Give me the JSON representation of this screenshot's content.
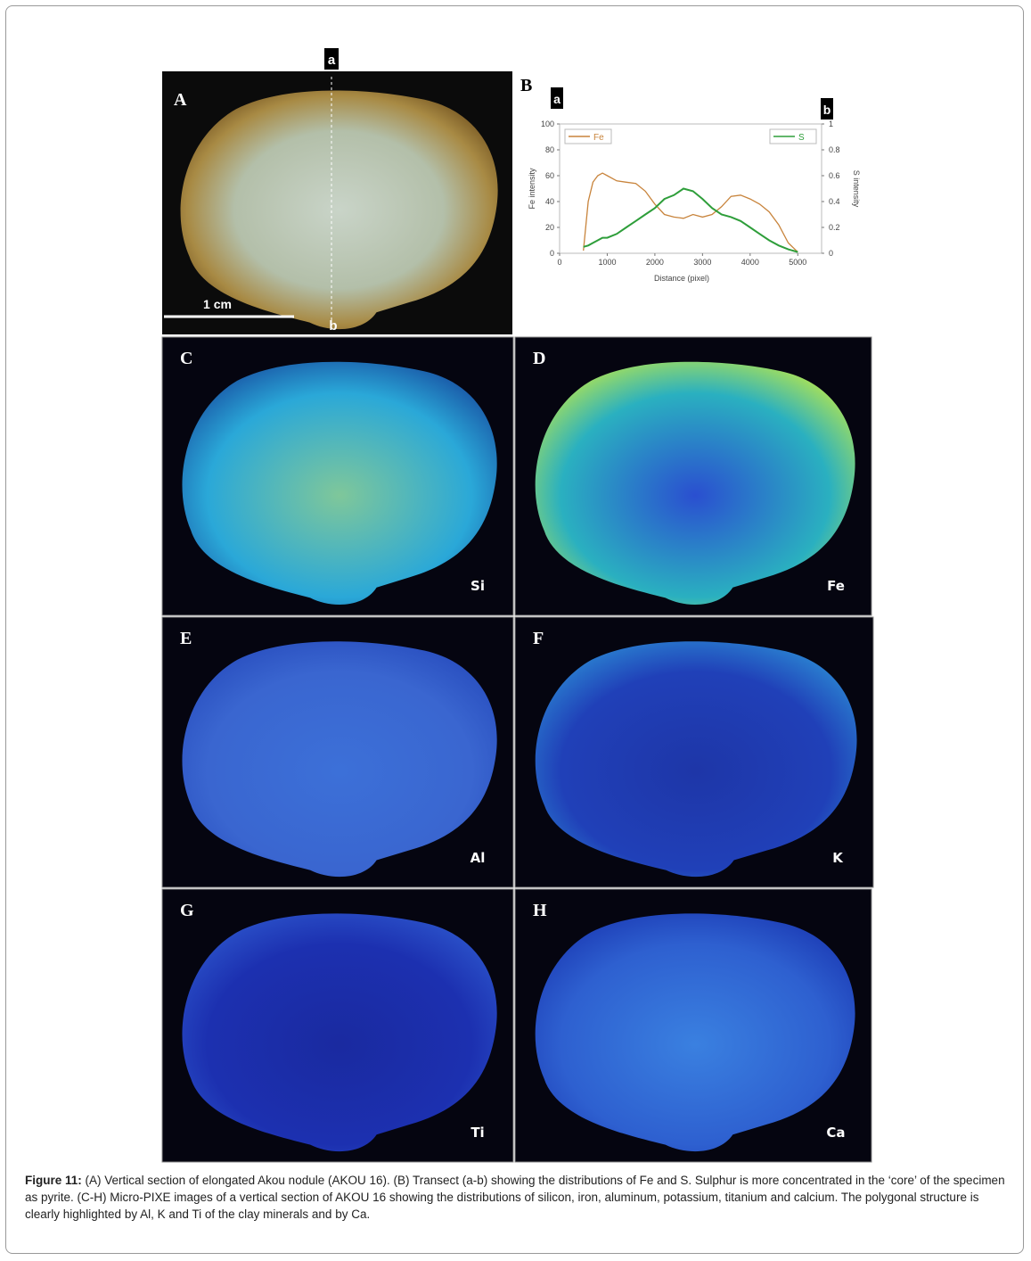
{
  "panel_a": {
    "label": "A",
    "scale_bar": "1 cm",
    "transect_start": "a",
    "transect_end": "b"
  },
  "chart_data": {
    "type": "line",
    "panel_label": "B",
    "transect_start": "a",
    "transect_end": "b",
    "x_label": "Distance (pixel)",
    "y_label": "Fe intensity",
    "y2_label": "S intensity",
    "x": [
      500,
      600,
      700,
      800,
      900,
      1000,
      1200,
      1400,
      1600,
      1800,
      2000,
      2200,
      2400,
      2600,
      2800,
      3000,
      3200,
      3400,
      3600,
      3800,
      4000,
      4200,
      4400,
      4600,
      4800,
      5000
    ],
    "series": [
      {
        "name": "Fe",
        "color": "#c8843c",
        "values": [
          2,
          40,
          55,
          60,
          62,
          60,
          56,
          55,
          54,
          48,
          38,
          30,
          28,
          27,
          30,
          28,
          30,
          36,
          44,
          45,
          42,
          38,
          32,
          22,
          8,
          1
        ]
      },
      {
        "name": "S",
        "color": "#2e9e3a",
        "axis": "y2",
        "values": [
          0.05,
          0.06,
          0.08,
          0.1,
          0.12,
          0.12,
          0.15,
          0.2,
          0.25,
          0.3,
          0.35,
          0.42,
          0.45,
          0.5,
          0.48,
          0.42,
          0.35,
          0.3,
          0.28,
          0.25,
          0.2,
          0.15,
          0.1,
          0.06,
          0.03,
          0.01
        ]
      }
    ],
    "xlim": [
      0,
      5500
    ],
    "xticks": [
      0,
      1000,
      2000,
      3000,
      4000,
      5000
    ],
    "ylim": [
      0,
      100
    ],
    "yticks": [
      0,
      20,
      40,
      60,
      80,
      100
    ],
    "y2lim": [
      0,
      1
    ],
    "y2ticks": [
      0,
      0.2,
      0.4,
      0.6,
      0.8,
      1
    ]
  },
  "panels": [
    {
      "label": "C",
      "element": "Si"
    },
    {
      "label": "D",
      "element": "Fe"
    },
    {
      "label": "E",
      "element": "Al"
    },
    {
      "label": "F",
      "element": "K"
    },
    {
      "label": "G",
      "element": "Ti"
    },
    {
      "label": "H",
      "element": "Ca"
    }
  ],
  "caption": {
    "label": "Figure 11:",
    "text": "(A) Vertical section of elongated Akou nodule (AKOU 16). (B) Transect (a-b) showing the distributions of Fe and S. Sulphur is more concentrated in the ‘core’ of the specimen as pyrite. (C-H) Micro-PIXE images of a vertical section of AKOU 16 showing the distributions of silicon, iron, aluminum, potassium, titanium and calcium. The polygonal structure is clearly highlighted by Al, K and Ti of the clay minerals and by Ca."
  }
}
